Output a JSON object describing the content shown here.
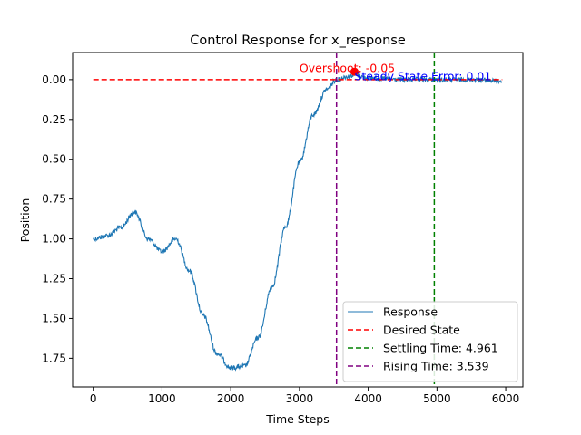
{
  "chart_data": {
    "type": "line",
    "title": "Control Response for x_response",
    "xlabel": "Time Steps",
    "ylabel": "Position",
    "xlim": [
      -300,
      6250
    ],
    "ylim": [
      1.93,
      -0.17
    ],
    "y_inverted": true,
    "grid": false,
    "legend_position": "lower right",
    "x_ticks": [
      "0",
      "1000",
      "2000",
      "3000",
      "4000",
      "5000",
      "6000"
    ],
    "y_ticks": [
      "0.00",
      "0.25",
      "0.50",
      "0.75",
      "1.00",
      "1.25",
      "1.50",
      "1.75"
    ],
    "series": [
      {
        "name": "Response",
        "color": "#1f77b4",
        "style": "solid",
        "points": [
          [
            0,
            1.0
          ],
          [
            200,
            0.98
          ],
          [
            400,
            0.93
          ],
          [
            600,
            0.83
          ],
          [
            800,
            1.0
          ],
          [
            1000,
            1.08
          ],
          [
            1200,
            1.0
          ],
          [
            1400,
            1.2
          ],
          [
            1600,
            1.48
          ],
          [
            1800,
            1.72
          ],
          [
            2000,
            1.81
          ],
          [
            2200,
            1.8
          ],
          [
            2400,
            1.62
          ],
          [
            2600,
            1.3
          ],
          [
            2800,
            0.92
          ],
          [
            3000,
            0.52
          ],
          [
            3200,
            0.22
          ],
          [
            3400,
            0.06
          ],
          [
            3539,
            0.0
          ],
          [
            3700,
            -0.02
          ],
          [
            3800,
            -0.03
          ],
          [
            4000,
            -0.01
          ],
          [
            4500,
            0.0
          ],
          [
            5000,
            0.0
          ],
          [
            5500,
            0.0
          ],
          [
            5950,
            0.01
          ]
        ]
      },
      {
        "name": "Desired State",
        "color": "#ff0000",
        "style": "dashed",
        "points": [
          [
            0,
            0.0
          ],
          [
            5950,
            0.0
          ]
        ]
      },
      {
        "name": "Settling Time: 4.961",
        "color": "#008000",
        "style": "dashed",
        "x": 4961
      },
      {
        "name": "Rising Time: 3.539",
        "color": "#800080",
        "style": "dashed",
        "x": 3539
      }
    ],
    "annotations": [
      {
        "text": "Overshoot: -0.05",
        "x": 3000,
        "y": -0.07,
        "color": "#ff0000"
      },
      {
        "text": "Steady State Error: 0.01",
        "x": 3800,
        "y": -0.02,
        "color": "#0000ff"
      }
    ],
    "markers": [
      {
        "x": 3800,
        "y": -0.05,
        "color": "#ff0000"
      }
    ]
  }
}
